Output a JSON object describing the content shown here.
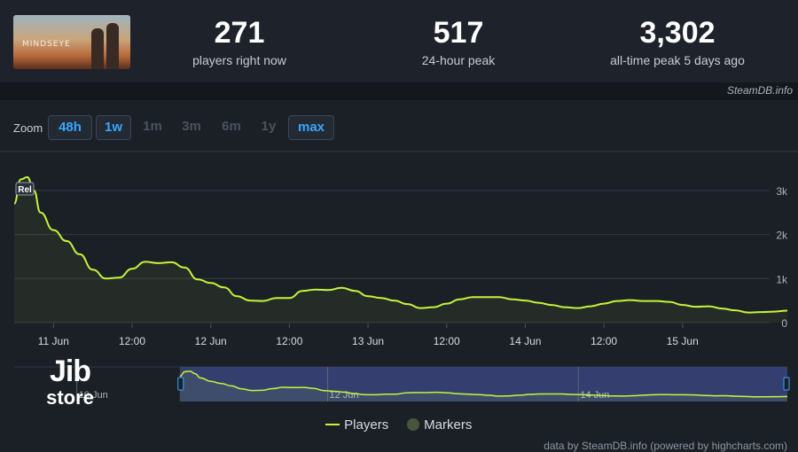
{
  "game": {
    "thumbnail_text": "MINDSEYE"
  },
  "stats": [
    {
      "value": "271",
      "label": "players right now"
    },
    {
      "value": "517",
      "label": "24-hour peak"
    },
    {
      "value": "3,302",
      "label": "all-time peak 5 days ago"
    }
  ],
  "credit": "SteamDB.info",
  "zoom": {
    "label": "Zoom",
    "options": [
      {
        "label": "48h",
        "active": true
      },
      {
        "label": "1w",
        "active": true
      },
      {
        "label": "1m",
        "active": false
      },
      {
        "label": "3m",
        "active": false
      },
      {
        "label": "6m",
        "active": false
      },
      {
        "label": "1y",
        "active": false
      },
      {
        "label": "max",
        "active": true
      }
    ]
  },
  "chart_data": {
    "type": "area",
    "x_unit": "hours",
    "x_start": "10 Jun 18:00",
    "x_end": "15 Jun 16:00",
    "x_tick_labels": [
      "11 Jun",
      "12:00",
      "12 Jun",
      "12:00",
      "13 Jun",
      "12:00",
      "14 Jun",
      "12:00",
      "15 Jun"
    ],
    "y_tick_labels": [
      "0",
      "1k",
      "2k",
      "3k"
    ],
    "ylim": [
      0,
      3500
    ],
    "grid": true,
    "series": [
      {
        "name": "Players",
        "color": "#c6f43a",
        "points": [
          [
            "10 Jun 18:00",
            2700
          ],
          [
            "10 Jun 19:00",
            3250
          ],
          [
            "10 Jun 20:00",
            3300
          ],
          [
            "10 Jun 21:00",
            3000
          ],
          [
            "10 Jun 22:00",
            2500
          ],
          [
            "11 Jun 00:00",
            2100
          ],
          [
            "11 Jun 02:00",
            1850
          ],
          [
            "11 Jun 04:00",
            1550
          ],
          [
            "11 Jun 06:00",
            1200
          ],
          [
            "11 Jun 08:00",
            1000
          ],
          [
            "11 Jun 10:00",
            1020
          ],
          [
            "11 Jun 12:00",
            1220
          ],
          [
            "11 Jun 14:00",
            1380
          ],
          [
            "11 Jun 16:00",
            1350
          ],
          [
            "11 Jun 18:00",
            1370
          ],
          [
            "11 Jun 20:00",
            1250
          ],
          [
            "11 Jun 22:00",
            980
          ],
          [
            "12 Jun 00:00",
            900
          ],
          [
            "12 Jun 02:00",
            800
          ],
          [
            "12 Jun 04:00",
            600
          ],
          [
            "12 Jun 06:00",
            500
          ],
          [
            "12 Jun 08:00",
            490
          ],
          [
            "12 Jun 10:00",
            560
          ],
          [
            "12 Jun 12:00",
            560
          ],
          [
            "12 Jun 14:00",
            720
          ],
          [
            "12 Jun 16:00",
            750
          ],
          [
            "12 Jun 18:00",
            740
          ],
          [
            "12 Jun 20:00",
            790
          ],
          [
            "12 Jun 22:00",
            720
          ],
          [
            "13 Jun 00:00",
            600
          ],
          [
            "13 Jun 02:00",
            560
          ],
          [
            "13 Jun 04:00",
            500
          ],
          [
            "13 Jun 06:00",
            420
          ],
          [
            "13 Jun 08:00",
            330
          ],
          [
            "13 Jun 10:00",
            350
          ],
          [
            "13 Jun 12:00",
            430
          ],
          [
            "13 Jun 14:00",
            530
          ],
          [
            "13 Jun 16:00",
            580
          ],
          [
            "13 Jun 18:00",
            580
          ],
          [
            "13 Jun 20:00",
            580
          ],
          [
            "13 Jun 22:00",
            530
          ],
          [
            "14 Jun 00:00",
            500
          ],
          [
            "14 Jun 02:00",
            450
          ],
          [
            "14 Jun 04:00",
            400
          ],
          [
            "14 Jun 06:00",
            350
          ],
          [
            "14 Jun 08:00",
            330
          ],
          [
            "14 Jun 10:00",
            370
          ],
          [
            "14 Jun 12:00",
            430
          ],
          [
            "14 Jun 14:00",
            490
          ],
          [
            "14 Jun 16:00",
            510
          ],
          [
            "14 Jun 18:00",
            490
          ],
          [
            "14 Jun 20:00",
            490
          ],
          [
            "14 Jun 22:00",
            470
          ],
          [
            "15 Jun 00:00",
            400
          ],
          [
            "15 Jun 02:00",
            360
          ],
          [
            "15 Jun 04:00",
            370
          ],
          [
            "15 Jun 06:00",
            320
          ],
          [
            "15 Jun 08:00",
            280
          ],
          [
            "15 Jun 10:00",
            230
          ],
          [
            "15 Jun 12:00",
            240
          ],
          [
            "15 Jun 14:00",
            250
          ],
          [
            "15 Jun 16:00",
            271
          ]
        ]
      }
    ],
    "annotations": [
      {
        "text": "Rel",
        "x": "10 Jun 18:00"
      }
    ],
    "navigator": {
      "tick_labels": [
        "10 Jun",
        "12 Jun",
        "14 Jun"
      ],
      "selected_from": "10 Jun 18:00",
      "selected_to": "15 Jun 16:00"
    },
    "legend": [
      {
        "name": "Players",
        "color": "#c6f43a"
      },
      {
        "name": "Markers",
        "color": "#48553a"
      }
    ],
    "legend_position": "bottom-center"
  },
  "watermark": {
    "line1": "Jib",
    "line2": "store"
  },
  "footer_credit": "data by SteamDB.info (powered by highcharts.com)"
}
